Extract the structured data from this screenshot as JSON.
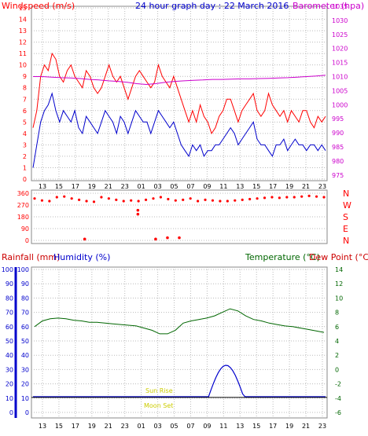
{
  "chart_data": [
    {
      "type": "line",
      "title": "24 hour graph day : 22 March 2016",
      "left_axis_label": "Windspeed (m/s)",
      "right_axis_label": "Barometer (hpa)",
      "x_ticks": [
        "13",
        "15",
        "17",
        "19",
        "21",
        "23",
        "01",
        "03",
        "05",
        "07",
        "09",
        "11",
        "13",
        "15",
        "17",
        "19",
        "21",
        "23"
      ],
      "left_ticks": [
        "0",
        "1",
        "2",
        "3",
        "4",
        "5",
        "6",
        "7",
        "8",
        "9",
        "10",
        "11",
        "12",
        "13",
        "14",
        "15"
      ],
      "right_ticks": [
        "975",
        "980",
        "985",
        "990",
        "995",
        "1000",
        "1005",
        "1010",
        "1015",
        "1020",
        "1025",
        "1030",
        "1035"
      ],
      "ylim_left": [
        0,
        15
      ],
      "ylim_right": [
        973,
        1035
      ],
      "grid": true,
      "series": [
        {
          "key": "gust",
          "color": "#ff0000",
          "values": [
            4.5,
            6,
            9,
            10,
            9.5,
            11,
            10.5,
            9,
            8.5,
            9.5,
            10,
            9,
            8.5,
            8,
            9.5,
            9,
            8,
            7.5,
            8,
            9,
            10,
            9,
            8.5,
            9,
            8,
            7,
            8,
            9,
            9.5,
            9,
            8.5,
            8,
            8.5,
            10,
            9,
            8.5,
            8,
            9,
            8,
            7,
            6,
            5,
            6,
            5,
            6.5,
            5.5,
            5,
            4,
            4.5,
            5.5,
            6,
            7,
            7,
            6,
            5,
            6,
            6.5,
            7,
            7.5,
            6,
            5.5,
            6,
            7.5,
            6.5,
            6,
            5.5,
            6,
            5,
            6,
            5.5,
            5,
            6,
            6,
            5,
            4.5,
            5.5,
            5,
            5.5
          ]
        },
        {
          "key": "avg",
          "color": "#0000cc",
          "values": [
            1,
            3,
            5,
            6,
            6.5,
            7.5,
            6,
            5,
            6,
            5.5,
            5,
            6,
            4.5,
            4,
            5.5,
            5,
            4.5,
            4,
            5,
            6,
            5.5,
            5,
            4,
            5.5,
            5,
            4,
            5,
            6,
            5.5,
            5,
            5,
            4,
            5,
            6,
            5.5,
            5,
            4.5,
            5,
            4,
            3,
            2.5,
            2,
            3,
            2.5,
            3,
            2,
            2.5,
            2.5,
            3,
            3,
            3.5,
            4,
            4.5,
            4,
            3,
            3.5,
            4,
            4.5,
            5,
            3.5,
            3,
            3,
            2.5,
            2,
            3,
            3,
            3.5,
            2.5,
            3,
            3.5,
            3,
            3,
            2.5,
            3,
            3,
            2.5,
            3,
            2.5
          ]
        },
        {
          "key": "baro",
          "color": "#cc00cc",
          "axis": "right",
          "values": [
            1010,
            1010,
            1009.8,
            1009.6,
            1009.5,
            1009.3,
            1009,
            1008.8,
            1008.5,
            1008.3,
            1008,
            1007.5,
            1007.2,
            1007.5,
            1008,
            1008.3,
            1008.5,
            1008.7,
            1008.8,
            1009,
            1009,
            1009.1,
            1009.2,
            1009.2,
            1009.3,
            1009.4,
            1009.5,
            1009.6,
            1009.8,
            1010,
            1010.2,
            1010.5
          ]
        }
      ]
    },
    {
      "type": "scatter",
      "left_ticks": [
        "0",
        "90",
        "180",
        "270",
        "360"
      ],
      "right_labels": [
        "N",
        "W",
        "S",
        "E",
        "N"
      ],
      "ylim": [
        0,
        360
      ],
      "series": [
        {
          "key": "dir",
          "color": "#ff0000",
          "values": [
            320,
            305,
            300,
            330,
            335,
            320,
            310,
            300,
            295,
            330,
            320,
            310,
            300,
            305,
            300,
            310,
            320,
            330,
            315,
            305,
            310,
            320,
            300,
            310,
            305,
            300,
            300,
            305,
            310,
            315,
            320,
            325,
            330,
            325,
            330,
            330,
            335,
            340,
            335,
            330
          ]
        }
      ],
      "outliers": [
        {
          "x": 0.36,
          "y": 200
        },
        {
          "x": 0.36,
          "y": 230
        },
        {
          "x": 0.18,
          "y": 10
        },
        {
          "x": 0.42,
          "y": 10
        },
        {
          "x": 0.46,
          "y": 20
        },
        {
          "x": 0.5,
          "y": 20
        }
      ]
    },
    {
      "type": "line",
      "left_labels": [
        "Rainfall (mm)",
        "Humidity (%)"
      ],
      "right_labels": [
        "Temperature (°C)",
        "Dew Point (°C)"
      ],
      "left_ticks": [
        "0",
        "10",
        "20",
        "30",
        "40",
        "50",
        "60",
        "70",
        "80",
        "90",
        "100"
      ],
      "right_ticks": [
        "-6",
        "-4",
        "-2",
        "0",
        "2",
        "4",
        "6",
        "8",
        "10",
        "12",
        "14"
      ],
      "ylim_left": [
        0,
        100
      ],
      "ylim_right": [
        -6,
        14
      ],
      "annotations": [
        "Sun Rise",
        "Moon Set"
      ],
      "series": [
        {
          "key": "temp",
          "color": "#006600",
          "values": [
            6.0,
            6.8,
            7.1,
            7.2,
            7.1,
            6.9,
            6.8,
            6.6,
            6.6,
            6.5,
            6.4,
            6.3,
            6.2,
            6.1,
            5.8,
            5.5,
            5.0,
            5.0,
            5.5,
            6.5,
            6.8,
            7.0,
            7.2,
            7.5,
            8.0,
            8.5,
            8.2,
            7.5,
            7.0,
            6.8,
            6.5,
            6.3,
            6.1,
            6.0,
            5.8,
            5.6,
            5.4,
            5.2
          ]
        },
        {
          "key": "hum",
          "color": "#0000cc",
          "values": [
            11,
            11,
            11,
            11,
            11,
            11,
            11,
            11,
            11,
            11,
            11,
            11,
            11,
            11,
            11,
            11,
            11,
            11,
            11,
            11,
            11,
            11,
            11,
            11,
            11,
            11,
            11,
            11,
            11,
            11,
            11,
            11,
            11,
            11,
            11,
            11,
            11,
            11
          ]
        }
      ],
      "hum_peak": {
        "start": 0.6,
        "end": 0.72,
        "value": 33
      }
    }
  ]
}
